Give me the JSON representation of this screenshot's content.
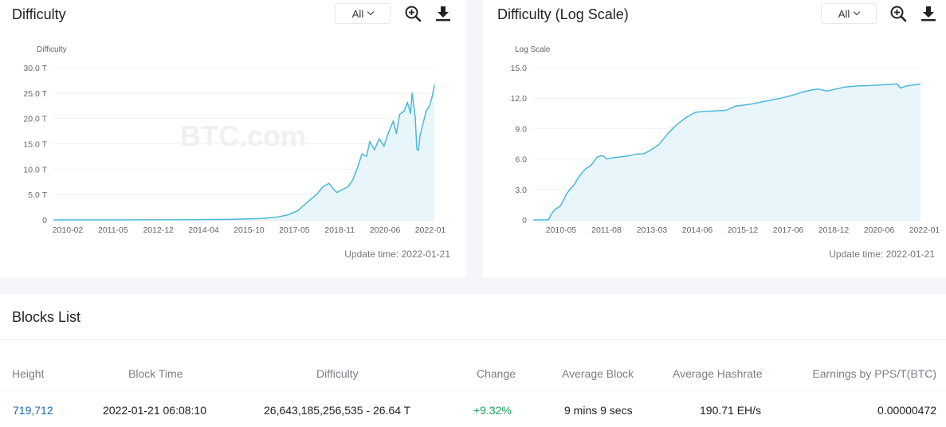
{
  "colors": {
    "line": "#4ab8d9",
    "fill": "#e8f6fb",
    "link": "#1a6bb0",
    "positive": "#16a35a",
    "grid": "#eef0f2",
    "text_muted": "#7a7f87"
  },
  "charts": [
    {
      "title": "Difficulty",
      "range_label": "All",
      "zoom_icon": "zoom-in-icon",
      "download_icon": "download-icon",
      "watermark": "BTC.com",
      "update_text": "Update time: 2022-01-21",
      "chart_data": {
        "type": "area",
        "ylabel": "Difficulty",
        "ylim": [
          0,
          30
        ],
        "yticks": [
          "0",
          "5.0 T",
          "10.0 T",
          "15.0 T",
          "20.0 T",
          "25.0 T",
          "30.0 T"
        ],
        "xticks": [
          "2010-02",
          "2011-05",
          "2012-12",
          "2014-04",
          "2015-10",
          "2017-05",
          "2018-11",
          "2020-06",
          "2022-01"
        ],
        "xlim": [
          2009.9,
          2022.06
        ],
        "series": [
          {
            "x": [
              2009.9,
              2012.0,
              2013.5,
              2014.5,
              2015.5,
              2016.5,
              2017.0,
              2017.4,
              2017.7,
              2017.9,
              2018.1,
              2018.3,
              2018.5,
              2018.7,
              2018.85,
              2018.95,
              2019.1,
              2019.3,
              2019.45,
              2019.6,
              2019.75,
              2019.9,
              2020.0,
              2020.15,
              2020.3,
              2020.45,
              2020.6,
              2020.75,
              2020.85,
              2020.95,
              2021.1,
              2021.2,
              2021.3,
              2021.35,
              2021.45,
              2021.5,
              2021.55,
              2021.6,
              2021.7,
              2021.8,
              2021.9,
              2022.0,
              2022.06
            ],
            "values": [
              0,
              0,
              0.01,
              0.05,
              0.1,
              0.25,
              0.5,
              1.0,
              1.8,
              2.9,
              4.0,
              5.0,
              6.5,
              7.2,
              6.0,
              5.4,
              5.9,
              6.5,
              7.8,
              10.2,
              13.0,
              12.5,
              15.5,
              13.8,
              16.0,
              14.5,
              17.3,
              19.5,
              17.0,
              20.8,
              21.5,
              23.2,
              21.0,
              25.0,
              20.3,
              14.0,
              13.7,
              16.5,
              19.0,
              21.5,
              22.4,
              24.5,
              26.6
            ]
          }
        ]
      }
    },
    {
      "title": "Difficulty (Log Scale)",
      "range_label": "All",
      "zoom_icon": "zoom-in-icon",
      "download_icon": "download-icon",
      "watermark": "BTC.com",
      "update_text": "Update time: 2022-01-21",
      "chart_data": {
        "type": "area",
        "ylabel": "Log Scale",
        "ylim": [
          0,
          15
        ],
        "yticks": [
          "0",
          "3.0",
          "6.0",
          "9.0",
          "12.0",
          "15.0"
        ],
        "xticks": [
          "2010-05",
          "2011-08",
          "2013-03",
          "2014-06",
          "2015-12",
          "2017-06",
          "2018-12",
          "2020-06",
          "2022-01"
        ],
        "xlim": [
          2009.4,
          2022.06
        ],
        "series": [
          {
            "x": [
              2009.4,
              2009.9,
              2010.0,
              2010.1,
              2010.3,
              2010.5,
              2010.6,
              2010.75,
              2010.9,
              2011.1,
              2011.3,
              2011.5,
              2011.6,
              2011.7,
              2011.8,
              2011.95,
              2012.2,
              2012.5,
              2012.8,
              2013.0,
              2013.2,
              2013.5,
              2013.8,
              2014.1,
              2014.4,
              2014.7,
              2015.0,
              2015.4,
              2015.7,
              2016.0,
              2016.5,
              2017.0,
              2017.5,
              2017.9,
              2018.2,
              2018.5,
              2018.7,
              2019.0,
              2019.3,
              2019.6,
              2020.0,
              2020.5,
              2021.0,
              2021.3,
              2021.4,
              2021.6,
              2022.06
            ],
            "values": [
              0,
              0,
              0.6,
              1.0,
              1.4,
              2.6,
              3.0,
              3.5,
              4.3,
              5.0,
              5.4,
              6.2,
              6.3,
              6.3,
              6.0,
              6.1,
              6.2,
              6.3,
              6.5,
              6.5,
              6.8,
              7.4,
              8.5,
              9.4,
              10.1,
              10.6,
              10.7,
              10.75,
              10.8,
              11.2,
              11.4,
              11.7,
              12.0,
              12.3,
              12.6,
              12.8,
              12.9,
              12.7,
              12.9,
              13.1,
              13.2,
              13.25,
              13.35,
              13.4,
              13.0,
              13.2,
              13.4
            ]
          }
        ]
      }
    }
  ],
  "blocks": {
    "title": "Blocks List",
    "columns": [
      "Height",
      "Block Time",
      "Difficulty",
      "Change",
      "Average Block",
      "Average Hashrate",
      "Earnings by PPS/T(BTC)"
    ],
    "rows": [
      {
        "height": "719,712",
        "block_time": "2022-01-21 06:08:10",
        "difficulty": "26,643,185,256,535 - 26.64 T",
        "change": "+9.32%",
        "average_block": "9 mins 9 secs",
        "average_hashrate": "190.71 EH/s",
        "earnings": "0.00000472"
      }
    ]
  }
}
